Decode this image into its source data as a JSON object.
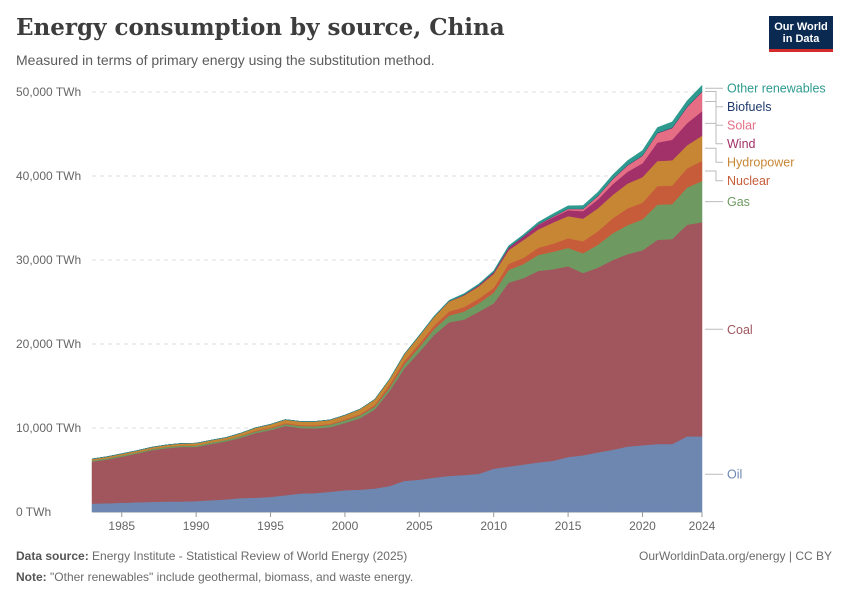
{
  "header": {
    "title": "Energy consumption by source, China",
    "subtitle": "Measured in terms of primary energy using the substitution method."
  },
  "logo": {
    "line1": "Our World",
    "line2": "in Data"
  },
  "footer": {
    "source_label": "Data source:",
    "source_text": "Energy Institute - Statistical Review of World Energy (2025)",
    "note_label": "Note:",
    "note_text": "\"Other renewables\" include geothermal, biomass, and waste energy.",
    "credit": "OurWorldinData.org/energy | CC BY"
  },
  "chart_data": {
    "type": "area",
    "stacked": true,
    "title": "Energy consumption by source, China",
    "xlabel": "",
    "ylabel": "",
    "xlim": [
      1983,
      2024
    ],
    "ylim": [
      0,
      50000
    ],
    "x_ticks": [
      1985,
      1990,
      1995,
      2000,
      2005,
      2010,
      2015,
      2020,
      2024
    ],
    "y_ticks": [
      {
        "value": 0,
        "label": "0 TWh"
      },
      {
        "value": 10000,
        "label": "10,000 TWh"
      },
      {
        "value": 20000,
        "label": "20,000 TWh"
      },
      {
        "value": 30000,
        "label": "30,000 TWh"
      },
      {
        "value": 40000,
        "label": "40,000 TWh"
      },
      {
        "value": 50000,
        "label": "50,000 TWh"
      }
    ],
    "grid": true,
    "legend": "right",
    "x": [
      1983,
      1984,
      1985,
      1986,
      1987,
      1988,
      1989,
      1990,
      1991,
      1992,
      1993,
      1994,
      1995,
      1996,
      1997,
      1998,
      1999,
      2000,
      2001,
      2002,
      2003,
      2004,
      2005,
      2006,
      2007,
      2008,
      2009,
      2010,
      2011,
      2012,
      2013,
      2014,
      2015,
      2016,
      2017,
      2018,
      2019,
      2020,
      2021,
      2022,
      2023,
      2024
    ],
    "series": [
      {
        "name": "Oil",
        "color": "#6d87b1",
        "values": [
          1000,
          1050,
          1100,
          1150,
          1200,
          1250,
          1250,
          1300,
          1400,
          1500,
          1650,
          1700,
          1800,
          2000,
          2200,
          2250,
          2400,
          2600,
          2650,
          2800,
          3100,
          3700,
          3850,
          4100,
          4300,
          4400,
          4550,
          5150,
          5400,
          5650,
          5900,
          6100,
          6550,
          6750,
          7100,
          7400,
          7800,
          7950,
          8100,
          8100,
          9000,
          9000
        ]
      },
      {
        "name": "Coal",
        "color": "#a0565c",
        "values": [
          5000,
          5200,
          5500,
          5800,
          6150,
          6350,
          6500,
          6450,
          6700,
          6900,
          7200,
          7700,
          7950,
          8250,
          7800,
          7700,
          7700,
          8000,
          8500,
          9400,
          11300,
          13400,
          15200,
          17000,
          18300,
          18500,
          19300,
          19700,
          21900,
          22200,
          22800,
          22800,
          22700,
          21700,
          22000,
          22600,
          22900,
          23200,
          24300,
          24400,
          25200,
          25500
        ]
      },
      {
        "name": "Gas",
        "color": "#6e9a61",
        "values": [
          150,
          150,
          150,
          150,
          150,
          160,
          170,
          180,
          180,
          190,
          200,
          200,
          200,
          220,
          240,
          260,
          280,
          300,
          330,
          350,
          400,
          490,
          560,
          680,
          790,
          960,
          1000,
          1250,
          1520,
          1670,
          1910,
          2090,
          2190,
          2350,
          2720,
          3180,
          3450,
          3680,
          4190,
          4150,
          4430,
          4900
        ]
      },
      {
        "name": "Nuclear",
        "color": "#c75c3a",
        "values": [
          0,
          0,
          0,
          0,
          0,
          0,
          0,
          0,
          0,
          0,
          30,
          100,
          100,
          110,
          110,
          110,
          110,
          130,
          140,
          200,
          350,
          400,
          420,
          430,
          490,
          540,
          560,
          580,
          710,
          740,
          850,
          960,
          1150,
          1430,
          1610,
          1800,
          2000,
          2000,
          2220,
          2220,
          2300,
          2400
        ]
      },
      {
        "name": "Hydropower",
        "color": "#c78634",
        "values": [
          170,
          180,
          190,
          200,
          210,
          230,
          250,
          260,
          270,
          280,
          310,
          340,
          390,
          420,
          440,
          470,
          480,
          510,
          620,
          650,
          670,
          810,
          950,
          1030,
          1180,
          1390,
          1450,
          1660,
          1650,
          2130,
          2180,
          2530,
          2640,
          2700,
          2730,
          2770,
          2960,
          3040,
          2980,
          3000,
          2730,
          3000
        ]
      },
      {
        "name": "Wind",
        "color": "#a2316a",
        "values": [
          0,
          0,
          0,
          0,
          0,
          0,
          0,
          0,
          0,
          0,
          0,
          0,
          0,
          0,
          0,
          0,
          0,
          0,
          0,
          0,
          0,
          0,
          5,
          10,
          25,
          60,
          120,
          180,
          270,
          380,
          530,
          600,
          700,
          890,
          1050,
          1270,
          1400,
          1650,
          2200,
          2450,
          2640,
          2920
        ]
      },
      {
        "name": "Solar",
        "color": "#e56e85",
        "values": [
          0,
          0,
          0,
          0,
          0,
          0,
          0,
          0,
          0,
          0,
          0,
          0,
          0,
          0,
          0,
          0,
          0,
          0,
          0,
          0,
          0,
          0,
          0,
          0,
          0,
          0,
          0,
          5,
          10,
          20,
          50,
          90,
          150,
          250,
          400,
          600,
          750,
          900,
          1100,
          1400,
          1900,
          2300
        ]
      },
      {
        "name": "Biofuels",
        "color": "#1f3a6b",
        "values": [
          0,
          0,
          0,
          0,
          0,
          0,
          0,
          0,
          0,
          0,
          0,
          0,
          0,
          0,
          0,
          0,
          0,
          0,
          0,
          0,
          0,
          5,
          10,
          15,
          20,
          25,
          30,
          35,
          40,
          40,
          40,
          40,
          45,
          45,
          50,
          55,
          60,
          60,
          65,
          70,
          75,
          80
        ]
      },
      {
        "name": "Other renewables",
        "color": "#2e9a8f",
        "values": [
          0,
          0,
          0,
          0,
          0,
          0,
          0,
          0,
          0,
          0,
          0,
          0,
          0,
          0,
          0,
          0,
          0,
          0,
          0,
          0,
          20,
          40,
          60,
          80,
          100,
          120,
          140,
          170,
          190,
          210,
          250,
          300,
          330,
          370,
          420,
          470,
          520,
          560,
          620,
          650,
          680,
          700
        ]
      }
    ]
  }
}
